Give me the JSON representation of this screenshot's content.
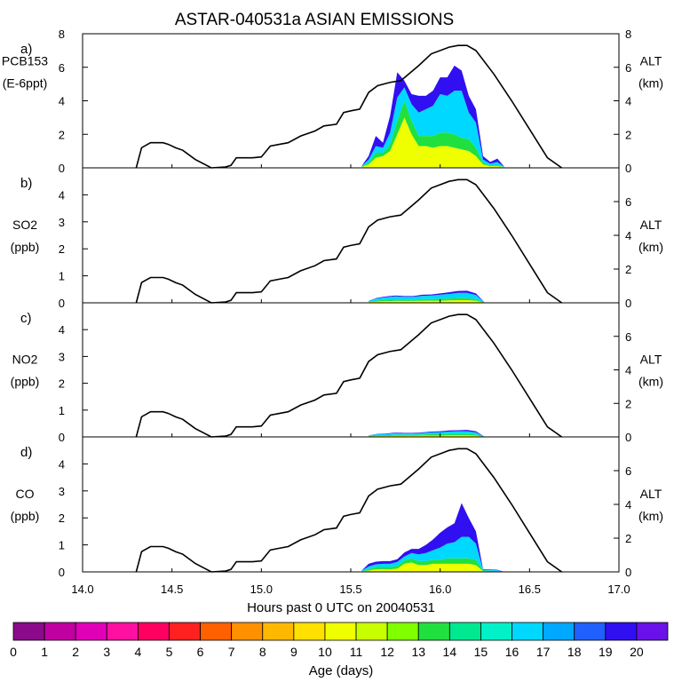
{
  "title": "ASTAR-040531a ASIAN EMISSIONS",
  "xlabel": "Hours past 0 UTC on 20040531",
  "x_ticks": [
    "14.0",
    "14.5",
    "15.0",
    "15.5",
    "16.0",
    "16.5",
    "17.0"
  ],
  "colorbar": {
    "label": "Age (days)",
    "ticks": [
      "0",
      "1",
      "2",
      "3",
      "4",
      "5",
      "6",
      "7",
      "8",
      "9",
      "10",
      "11",
      "12",
      "13",
      "14",
      "15",
      "16",
      "17",
      "18",
      "19",
      "20"
    ],
    "colors": [
      "#8b0a8b",
      "#c000a0",
      "#e000b8",
      "#ff10a0",
      "#ff0060",
      "#ff2020",
      "#ff6000",
      "#ff9000",
      "#ffb800",
      "#ffe000",
      "#f0ff00",
      "#c8ff00",
      "#80ff00",
      "#20e040",
      "#00e890",
      "#00f0c8",
      "#00d8ff",
      "#00a8ff",
      "#2060ff",
      "#3010f0",
      "#6a10e8"
    ]
  },
  "altitude_profile": {
    "x": [
      14.3,
      14.33,
      14.38,
      14.45,
      14.48,
      14.52,
      14.56,
      14.63,
      14.72,
      14.8,
      14.83,
      14.86,
      14.95,
      15.0,
      15.05,
      15.1,
      15.15,
      15.22,
      15.3,
      15.35,
      15.42,
      15.46,
      15.5,
      15.55,
      15.6,
      15.65,
      15.72,
      15.78,
      15.88,
      15.95,
      16.05,
      16.1,
      16.15,
      16.2,
      16.3,
      16.4,
      16.5,
      16.6,
      16.68
    ],
    "y": [
      0,
      1.2,
      1.5,
      1.5,
      1.4,
      1.2,
      1.05,
      0.5,
      0,
      0.05,
      0.15,
      0.6,
      0.6,
      0.65,
      1.3,
      1.4,
      1.5,
      1.9,
      2.2,
      2.5,
      2.6,
      3.3,
      3.4,
      3.5,
      4.5,
      4.9,
      5.1,
      5.2,
      6.1,
      6.8,
      7.2,
      7.3,
      7.3,
      7.0,
      5.6,
      4.0,
      2.3,
      0.6,
      0
    ]
  },
  "chart_data": [
    {
      "type": "area",
      "label": "a)",
      "ylabel": "PCB153",
      "ylabel_units": "(E-6ppt)",
      "right_label": "ALT",
      "right_units": "(km)",
      "ylim": [
        0,
        8
      ],
      "y_ticks": [
        0,
        2,
        4,
        6,
        8
      ],
      "alt_ylim": [
        0,
        8
      ],
      "alt_ticks": [
        0,
        2,
        4,
        6,
        8
      ],
      "x": [
        15.56,
        15.6,
        15.64,
        15.68,
        15.72,
        15.76,
        15.8,
        15.84,
        15.88,
        15.92,
        15.96,
        16.0,
        16.04,
        16.08,
        16.12,
        16.16,
        16.2,
        16.24,
        16.28,
        16.32,
        16.36
      ],
      "series": [
        {
          "name": "yellow (age 9-11)",
          "color": "#f0ff00",
          "values": [
            0.05,
            0.2,
            0.6,
            0.7,
            1.0,
            2.0,
            3.0,
            2.0,
            1.3,
            1.3,
            1.2,
            1.3,
            1.3,
            1.2,
            1.1,
            1.0,
            0.7,
            0.2,
            0.1,
            0.1,
            0.05
          ]
        },
        {
          "name": "green (age 11-14)",
          "color": "#20e040",
          "values": [
            0.02,
            0.1,
            0.3,
            0.2,
            0.4,
            0.8,
            1.0,
            0.8,
            0.6,
            0.6,
            0.7,
            0.8,
            0.8,
            0.8,
            0.7,
            0.7,
            0.5,
            0.1,
            0.05,
            0.05,
            0.0
          ]
        },
        {
          "name": "cyan (age 14-17)",
          "color": "#00d8ff",
          "values": [
            0.03,
            0.2,
            0.4,
            0.3,
            0.7,
            1.4,
            0.8,
            1.0,
            1.4,
            1.6,
            1.8,
            2.3,
            2.2,
            2.6,
            2.8,
            1.6,
            1.5,
            0.2,
            0.1,
            0.2,
            0.0
          ]
        },
        {
          "name": "violet (age 17-20)",
          "color": "#3010f0",
          "values": [
            0.0,
            0.2,
            0.6,
            0.3,
            1.0,
            1.5,
            0.4,
            0.6,
            1.0,
            0.8,
            0.9,
            1.0,
            1.1,
            1.5,
            1.2,
            1.0,
            0.8,
            0.2,
            0.1,
            0.2,
            0.0
          ]
        }
      ]
    },
    {
      "type": "area",
      "label": "b)",
      "ylabel": "SO2",
      "ylabel_units": "(ppb)",
      "right_label": "ALT",
      "right_units": "(km)",
      "ylim": [
        0,
        5
      ],
      "y_ticks": [
        0,
        1,
        2,
        3,
        4
      ],
      "alt_ylim": [
        0,
        8
      ],
      "alt_ticks": [
        0,
        2,
        4,
        6
      ],
      "x": [
        15.6,
        15.65,
        15.7,
        15.75,
        15.8,
        15.85,
        15.9,
        15.95,
        16.0,
        16.05,
        16.1,
        16.15,
        16.2,
        16.25
      ],
      "series": [
        {
          "name": "yellow",
          "color": "#f0ff00",
          "values": [
            0.03,
            0.05,
            0.06,
            0.07,
            0.07,
            0.07,
            0.08,
            0.08,
            0.08,
            0.09,
            0.1,
            0.1,
            0.08,
            0.0
          ]
        },
        {
          "name": "green",
          "color": "#20e040",
          "values": [
            0.02,
            0.04,
            0.05,
            0.05,
            0.05,
            0.05,
            0.06,
            0.06,
            0.07,
            0.07,
            0.07,
            0.07,
            0.06,
            0.0
          ]
        },
        {
          "name": "cyan",
          "color": "#00d8ff",
          "values": [
            0.03,
            0.08,
            0.1,
            0.12,
            0.1,
            0.1,
            0.12,
            0.13,
            0.15,
            0.17,
            0.2,
            0.2,
            0.15,
            0.0
          ]
        },
        {
          "name": "violet",
          "color": "#3010f0",
          "values": [
            0.0,
            0.02,
            0.03,
            0.03,
            0.03,
            0.03,
            0.04,
            0.04,
            0.05,
            0.06,
            0.07,
            0.08,
            0.06,
            0.0
          ]
        }
      ]
    },
    {
      "type": "area",
      "label": "c)",
      "ylabel": "NO2",
      "ylabel_units": "(ppb)",
      "right_label": "ALT",
      "right_units": "(km)",
      "ylim": [
        0,
        5
      ],
      "y_ticks": [
        0,
        1,
        2,
        3,
        4
      ],
      "alt_ylim": [
        0,
        8
      ],
      "alt_ticks": [
        0,
        2,
        4,
        6
      ],
      "x": [
        15.6,
        15.65,
        15.7,
        15.75,
        15.8,
        15.85,
        15.9,
        15.95,
        16.0,
        16.05,
        16.1,
        16.15,
        16.2,
        16.25
      ],
      "series": [
        {
          "name": "yellow",
          "color": "#f0ff00",
          "values": [
            0.02,
            0.03,
            0.03,
            0.04,
            0.04,
            0.04,
            0.05,
            0.05,
            0.05,
            0.06,
            0.06,
            0.06,
            0.05,
            0.0
          ]
        },
        {
          "name": "green",
          "color": "#20e040",
          "values": [
            0.02,
            0.03,
            0.03,
            0.04,
            0.04,
            0.04,
            0.04,
            0.05,
            0.05,
            0.05,
            0.05,
            0.05,
            0.04,
            0.0
          ]
        },
        {
          "name": "cyan",
          "color": "#00d8ff",
          "values": [
            0.02,
            0.04,
            0.05,
            0.06,
            0.05,
            0.05,
            0.06,
            0.07,
            0.08,
            0.09,
            0.1,
            0.1,
            0.08,
            0.0
          ]
        },
        {
          "name": "violet",
          "color": "#3010f0",
          "values": [
            0.0,
            0.01,
            0.02,
            0.02,
            0.02,
            0.02,
            0.02,
            0.03,
            0.03,
            0.04,
            0.04,
            0.05,
            0.04,
            0.0
          ]
        }
      ]
    },
    {
      "type": "area",
      "label": "d)",
      "ylabel": "CO",
      "ylabel_units": "(ppb)",
      "right_label": "ALT",
      "right_units": "(km)",
      "ylim": [
        0,
        5
      ],
      "y_ticks": [
        0,
        1,
        2,
        3,
        4
      ],
      "alt_ylim": [
        0,
        8
      ],
      "alt_ticks": [
        0,
        2,
        4,
        6
      ],
      "x": [
        15.56,
        15.6,
        15.64,
        15.68,
        15.72,
        15.76,
        15.8,
        15.84,
        15.88,
        15.92,
        15.96,
        16.0,
        16.04,
        16.08,
        16.12,
        16.16,
        16.2,
        16.24,
        16.28,
        16.32,
        16.36
      ],
      "series": [
        {
          "name": "yellow",
          "color": "#f0ff00",
          "values": [
            0.02,
            0.05,
            0.1,
            0.1,
            0.1,
            0.12,
            0.3,
            0.35,
            0.25,
            0.25,
            0.3,
            0.3,
            0.3,
            0.3,
            0.3,
            0.3,
            0.25,
            0.03,
            0.02,
            0.02,
            0.0
          ]
        },
        {
          "name": "green",
          "color": "#20e040",
          "values": [
            0.01,
            0.05,
            0.08,
            0.08,
            0.08,
            0.1,
            0.12,
            0.15,
            0.15,
            0.15,
            0.15,
            0.15,
            0.2,
            0.2,
            0.2,
            0.2,
            0.2,
            0.02,
            0.02,
            0.01,
            0.0
          ]
        },
        {
          "name": "cyan",
          "color": "#00d8ff",
          "values": [
            0.01,
            0.1,
            0.1,
            0.12,
            0.12,
            0.15,
            0.15,
            0.2,
            0.25,
            0.3,
            0.35,
            0.45,
            0.55,
            0.6,
            0.8,
            0.8,
            0.6,
            0.03,
            0.03,
            0.03,
            0.0
          ]
        },
        {
          "name": "violet",
          "color": "#3010f0",
          "values": [
            0.0,
            0.1,
            0.1,
            0.1,
            0.1,
            0.1,
            0.15,
            0.15,
            0.2,
            0.3,
            0.4,
            0.55,
            0.6,
            0.7,
            1.25,
            0.7,
            0.45,
            0.02,
            0.02,
            0.02,
            0.0
          ]
        }
      ]
    }
  ]
}
